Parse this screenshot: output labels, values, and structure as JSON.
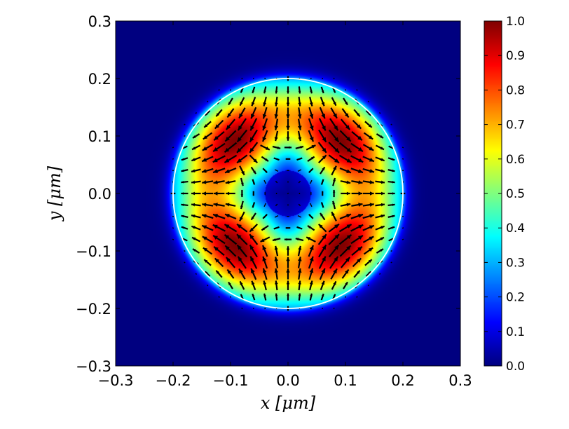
{
  "chart_data": {
    "type": "heatmap",
    "description_type": "field magnitude heatmap with quiver arrows",
    "xlabel": "x [μm]",
    "ylabel": "y [μm]",
    "xlim": [
      -0.3,
      0.3
    ],
    "ylim": [
      -0.3,
      0.3
    ],
    "xticks": [
      "−0.3",
      "−0.2",
      "−0.1",
      "0.0",
      "0.1",
      "0.2",
      "0.3"
    ],
    "yticks": [
      "−0.3",
      "−0.2",
      "−0.1",
      "0.0",
      "0.1",
      "0.2",
      "0.3"
    ],
    "xtick_values": [
      -0.3,
      -0.2,
      -0.1,
      0.0,
      0.1,
      0.2,
      0.3
    ],
    "ytick_values": [
      -0.3,
      -0.2,
      -0.1,
      0.0,
      0.1,
      0.2,
      0.3
    ],
    "colormap": "jet",
    "clim": [
      0.0,
      1.0
    ],
    "colorbar_ticks": [
      "0.0",
      "0.1",
      "0.2",
      "0.3",
      "0.4",
      "0.5",
      "0.6",
      "0.7",
      "0.8",
      "0.9",
      "1.0"
    ],
    "colorbar_tick_values": [
      0.0,
      0.1,
      0.2,
      0.3,
      0.4,
      0.5,
      0.6,
      0.7,
      0.8,
      0.9,
      1.0
    ],
    "circle_radius": 0.2,
    "circle_color": "#ffffff",
    "arrow_color": "#000000",
    "arrow_grid_step": 0.02,
    "field_peak_radius": 0.13,
    "field_center_min": 0.05,
    "field_pattern": "four-lobe (hexapole-like) with maxima along diagonals"
  }
}
